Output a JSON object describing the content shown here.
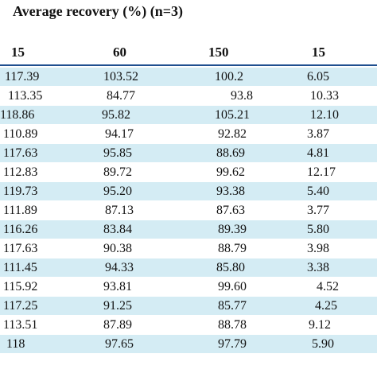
{
  "title": "Average recovery (%) (n=3)",
  "columns": [
    "15",
    "60",
    "150",
    "15"
  ],
  "rows": [
    [
      "117.39",
      "103.52",
      "100.2",
      "6.05"
    ],
    [
      "113.35",
      "84.77",
      "93.8",
      "10.33"
    ],
    [
      "118.86",
      "95.82",
      "105.21",
      "12.10"
    ],
    [
      "110.89",
      "94.17",
      "92.82",
      "3.87"
    ],
    [
      "117.63",
      "95.85",
      "88.69",
      "4.81"
    ],
    [
      "112.83",
      "89.72",
      "99.62",
      "12.17"
    ],
    [
      "119.73",
      "95.20",
      "93.38",
      "5.40"
    ],
    [
      "111.89",
      "87.13",
      "87.63",
      "3.77"
    ],
    [
      "116.26",
      "83.84",
      "89.39",
      "5.80"
    ],
    [
      "117.63",
      "90.38",
      "88.79",
      "3.98"
    ],
    [
      "111.45",
      "94.33",
      "85.80",
      "3.38"
    ],
    [
      "115.92",
      "93.81",
      "99.60",
      "4.52"
    ],
    [
      "117.25",
      "91.25",
      "85.77",
      "4.25"
    ],
    [
      "113.51",
      "87.89",
      "88.78",
      "9.12"
    ],
    [
      "118",
      "97.65",
      "97.79",
      "5.90"
    ]
  ],
  "colors": {
    "band": "#d4ecf4",
    "rule": "#1f4f8f"
  }
}
